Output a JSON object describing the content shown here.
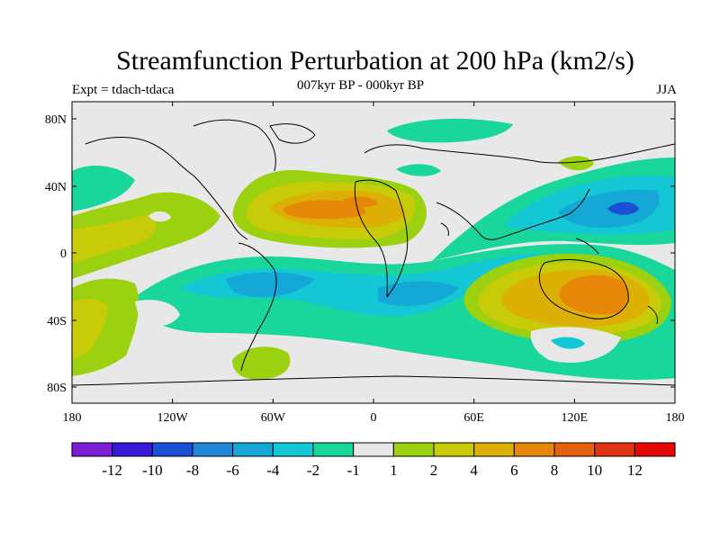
{
  "header": {
    "title": "Streamfunction Perturbation at 200 hPa (km2/s)",
    "experiment": "Expt = tdach-tdaca",
    "period": "007kyr BP - 000kyr BP",
    "season": "JJA"
  },
  "map_axes": {
    "lon_ticks": [
      "180",
      "120W",
      "60W",
      "0",
      "60E",
      "120E",
      "180"
    ],
    "lat_ticks": [
      "80N",
      "40N",
      "0",
      "40S",
      "80S"
    ]
  },
  "colorbar": {
    "labels": [
      "-12",
      "-10",
      "-8",
      "-6",
      "-4",
      "-2",
      "-1",
      "1",
      "2",
      "4",
      "6",
      "8",
      "10",
      "12"
    ],
    "colors": [
      "#7a1fd6",
      "#3a18d8",
      "#1b4fd6",
      "#1f86d8",
      "#15a8d6",
      "#14c7d4",
      "#19d69a",
      "#e8e8e8",
      "#9bd10e",
      "#c7cb08",
      "#ddb005",
      "#e6870a",
      "#e4620e",
      "#e03314",
      "#e60707"
    ]
  },
  "colors": {
    "neutral": "#e8e8e8",
    "coast": "#000000"
  }
}
